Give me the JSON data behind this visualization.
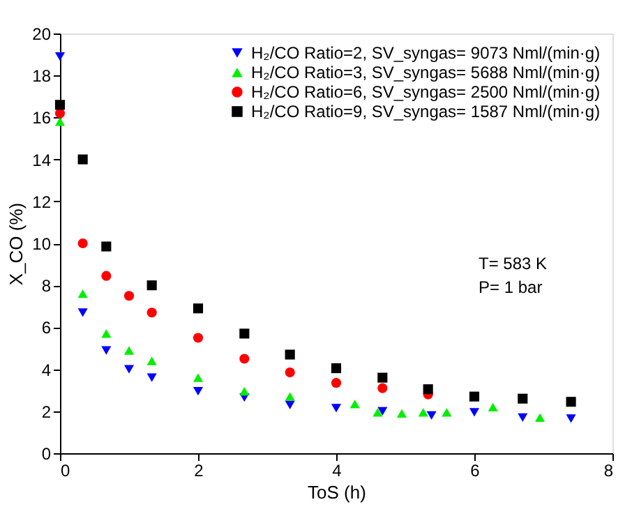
{
  "chart_data": {
    "type": "scatter",
    "xlabel": "ToS (h)",
    "ylabel": "X_CO (%)",
    "xlim": [
      0,
      8
    ],
    "xticks": [
      0,
      2,
      4,
      6,
      8
    ],
    "ylim": [
      0,
      20
    ],
    "yticks": [
      0,
      2,
      4,
      6,
      8,
      10,
      12,
      14,
      16,
      18,
      20
    ],
    "grid": false,
    "legend": "top right",
    "annotations": [
      "T= 583 K",
      "P= 1 bar"
    ],
    "series": [
      {
        "name": "H₂/CO Ratio=2, SV_syngas= 9073 Nml/(min·g)",
        "color": "#0000ff",
        "marker": "triangle-down",
        "x": [
          0,
          0.33,
          0.67,
          1.0,
          1.33,
          2.0,
          2.67,
          3.33,
          4.0,
          4.67,
          5.38,
          6.0,
          6.7,
          7.4
        ],
        "values": [
          18.9,
          6.7,
          4.9,
          4.0,
          3.6,
          2.95,
          2.65,
          2.3,
          2.15,
          2.0,
          1.8,
          1.95,
          1.7,
          1.65
        ]
      },
      {
        "name": "H₂/CO Ratio=3, SV_syngas= 5688 Nml/(min·g)",
        "color": "#00ee00",
        "marker": "triangle",
        "x": [
          0,
          0.33,
          0.67,
          1.0,
          1.33,
          2.0,
          2.67,
          3.33,
          4.27,
          4.6,
          4.95,
          5.26,
          5.6,
          6.27,
          6.95
        ],
        "values": [
          15.8,
          7.6,
          5.7,
          4.9,
          4.4,
          3.6,
          2.95,
          2.7,
          2.35,
          1.95,
          1.9,
          1.95,
          1.95,
          2.2,
          1.7
        ]
      },
      {
        "name": "H₂/CO Ratio=6, SV_syngas= 2500 Nml/(min·g)",
        "color": "#ff0000",
        "marker": "circle",
        "x": [
          0,
          0.33,
          0.67,
          1.0,
          1.33,
          2.0,
          2.67,
          3.33,
          4.0,
          4.67,
          5.33
        ],
        "values": [
          16.2,
          10.0,
          8.45,
          7.5,
          6.7,
          5.5,
          4.5,
          3.85,
          3.35,
          3.1,
          2.8
        ]
      },
      {
        "name": "H₂/CO Ratio=9, SV_syngas= 1587 Nml/(min·g)",
        "color": "#000000",
        "marker": "square",
        "x": [
          0,
          0.33,
          0.67,
          1.33,
          2.0,
          2.67,
          3.33,
          4.0,
          4.67,
          5.33,
          6.0,
          6.7,
          7.4
        ],
        "values": [
          16.6,
          14.0,
          9.85,
          8.0,
          6.9,
          5.7,
          4.7,
          4.05,
          3.6,
          3.05,
          2.7,
          2.6,
          2.45
        ]
      }
    ]
  }
}
